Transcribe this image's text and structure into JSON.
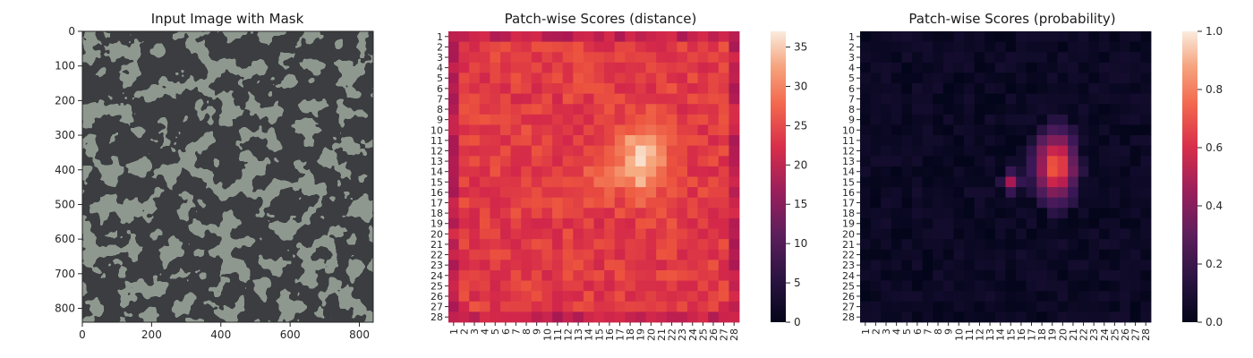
{
  "chart_data": [
    {
      "type": "image",
      "title": "Input Image with Mask",
      "xticks": [
        0,
        200,
        400,
        600,
        800
      ],
      "yticks": [
        0,
        100,
        200,
        300,
        400,
        500,
        600,
        700,
        800
      ],
      "xlim": [
        0,
        840
      ],
      "ylim": [
        840,
        0
      ],
      "image_description_colors": {
        "light": "#8e988f",
        "dark": "#3b3f40"
      }
    },
    {
      "type": "heatmap",
      "title": "Patch-wise Scores (distance)",
      "xlabel": "",
      "ylabel": "",
      "rows": [
        "1",
        "2",
        "3",
        "4",
        "5",
        "6",
        "7",
        "8",
        "9",
        "10",
        "11",
        "12",
        "13",
        "14",
        "15",
        "16",
        "17",
        "18",
        "19",
        "20",
        "21",
        "22",
        "23",
        "24",
        "25",
        "26",
        "27",
        "28"
      ],
      "cols": [
        "1",
        "2",
        "3",
        "4",
        "5",
        "6",
        "7",
        "8",
        "9",
        "10",
        "11",
        "12",
        "13",
        "14",
        "15",
        "16",
        "17",
        "18",
        "19",
        "20",
        "21",
        "22",
        "23",
        "24",
        "25",
        "26",
        "27",
        "28"
      ],
      "colormap": "rocket",
      "vmin": 0,
      "vmax": 37,
      "colorbar_ticks": [
        0,
        5,
        10,
        15,
        20,
        25,
        30,
        35
      ],
      "description": "Values about 22-27 across the grid, lower (~20-22) along the first and last rows/columns, a bright blob up to ~37 centred near row 13, column 19."
    },
    {
      "type": "heatmap",
      "title": "Patch-wise Scores (probability)",
      "xlabel": "",
      "ylabel": "",
      "rows": [
        "1",
        "2",
        "3",
        "4",
        "5",
        "6",
        "7",
        "8",
        "9",
        "10",
        "11",
        "12",
        "13",
        "14",
        "15",
        "16",
        "17",
        "18",
        "19",
        "20",
        "21",
        "22",
        "23",
        "24",
        "25",
        "26",
        "27",
        "28"
      ],
      "cols": [
        "1",
        "2",
        "3",
        "4",
        "5",
        "6",
        "7",
        "8",
        "9",
        "10",
        "11",
        "12",
        "13",
        "14",
        "15",
        "16",
        "17",
        "18",
        "19",
        "20",
        "21",
        "22",
        "23",
        "24",
        "25",
        "26",
        "27",
        "28"
      ],
      "colormap": "rocket",
      "vmin": 0.0,
      "vmax": 1.0,
      "colorbar_ticks": [
        "0.0",
        "0.2",
        "0.4",
        "0.6",
        "0.8",
        "1.0"
      ],
      "description": "Near zero everywhere except a blob of about 0.4-0.75 at rows 9-18, columns 17-22."
    }
  ]
}
